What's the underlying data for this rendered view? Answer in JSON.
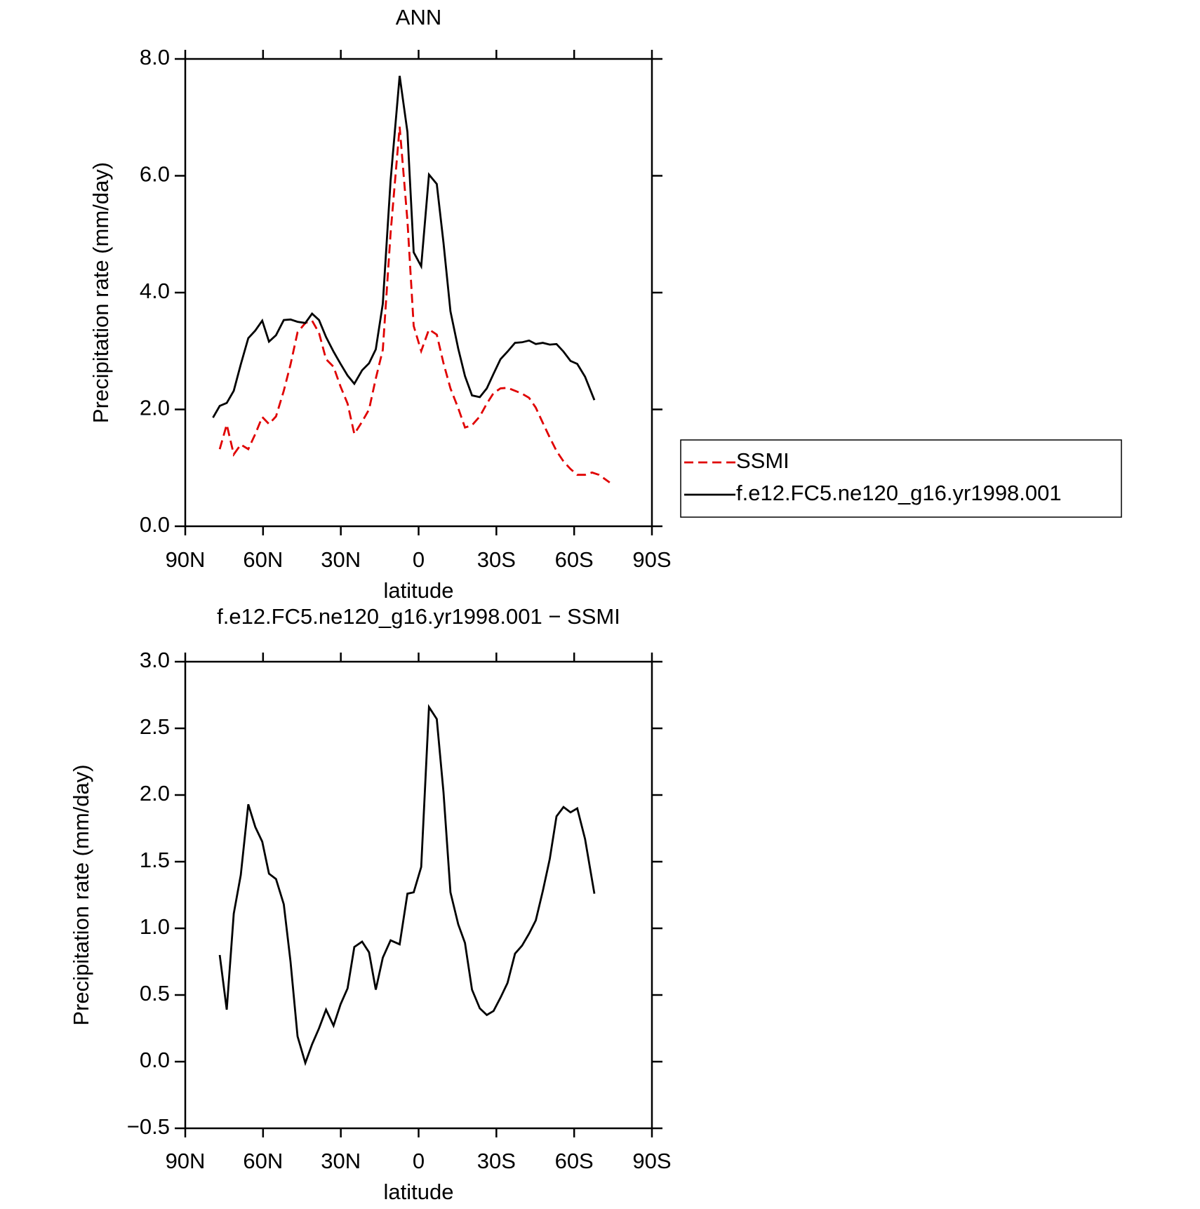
{
  "chart_data": [
    {
      "type": "line",
      "title": "ANN",
      "xlabel": "latitude",
      "ylabel": "Precipitation rate (mm/day)",
      "xlim": [
        90,
        -90
      ],
      "xticks": [
        {
          "value": 90,
          "label": "90N"
        },
        {
          "value": 60,
          "label": "60N"
        },
        {
          "value": 30,
          "label": "30N"
        },
        0,
        {
          "value": -30,
          "label": "30S"
        },
        {
          "value": -60,
          "label": "60S"
        },
        {
          "value": -90,
          "label": "90S"
        }
      ],
      "ylim": [
        0,
        8
      ],
      "yticks": [
        {
          "value": 0,
          "label": "0.0"
        },
        {
          "value": 2,
          "label": "2.0"
        },
        {
          "value": 4,
          "label": "4.0"
        },
        {
          "value": 6,
          "label": "6.0"
        },
        {
          "value": 8,
          "label": "8.0"
        }
      ],
      "legend": "right",
      "series": [
        {
          "name": "SSMI",
          "color": "#e00000",
          "dashed": true,
          "x": [
            76.7,
            74.0,
            71.3,
            68.6,
            65.7,
            63.0,
            60.3,
            57.7,
            55.0,
            52.0,
            49.4,
            46.7,
            43.7,
            41.1,
            38.4,
            35.7,
            32.8,
            30.1,
            27.4,
            24.8,
            21.8,
            19.1,
            16.5,
            13.8,
            10.8,
            7.3,
            4.3,
            1.9,
            -1.0,
            -4.0,
            -7.0,
            -9.6,
            -12.3,
            -15.3,
            -17.9,
            -20.6,
            -23.6,
            -26.3,
            -28.9,
            -31.6,
            -34.3,
            -37.2,
            -39.9,
            -42.6,
            -45.2,
            -47.9,
            -50.6,
            -53.2,
            -55.9,
            -58.6,
            -61.2,
            -64.2,
            -66.9,
            -69.6,
            -73.7
          ],
          "values": [
            1.32,
            1.74,
            1.23,
            1.4,
            1.32,
            1.58,
            1.87,
            1.75,
            1.88,
            2.32,
            2.77,
            3.32,
            3.48,
            3.52,
            3.31,
            2.86,
            2.73,
            2.39,
            2.1,
            1.58,
            1.79,
            2.0,
            2.53,
            3.02,
            5.02,
            6.84,
            5.23,
            3.43,
            3.0,
            3.37,
            3.28,
            2.79,
            2.36,
            2.02,
            1.69,
            1.73,
            1.88,
            2.1,
            2.28,
            2.36,
            2.37,
            2.32,
            2.27,
            2.2,
            2.03,
            1.77,
            1.52,
            1.29,
            1.11,
            0.98,
            0.88,
            0.88,
            0.92,
            0.88,
            0.75
          ]
        },
        {
          "name": "f.e12.FC5.ne120_g16.yr1998.001",
          "color": "#000000",
          "dashed": false,
          "x": [
            79.3,
            76.7,
            74.0,
            71.3,
            68.6,
            65.7,
            63.0,
            60.3,
            57.7,
            55.0,
            52.0,
            49.4,
            46.7,
            43.7,
            41.1,
            38.4,
            35.7,
            32.8,
            30.1,
            27.4,
            24.8,
            21.8,
            19.1,
            16.5,
            13.8,
            10.8,
            7.3,
            4.3,
            1.9,
            -1.0,
            -4.0,
            -7.0,
            -9.6,
            -12.3,
            -15.3,
            -17.9,
            -20.6,
            -23.6,
            -26.3,
            -28.9,
            -31.6,
            -34.3,
            -37.2,
            -39.9,
            -42.6,
            -45.2,
            -47.9,
            -50.6,
            -53.2,
            -55.9,
            -58.6,
            -61.2,
            -64.2,
            -67.8
          ],
          "values": [
            1.86,
            2.06,
            2.11,
            2.32,
            2.77,
            3.22,
            3.35,
            3.52,
            3.16,
            3.27,
            3.53,
            3.54,
            3.5,
            3.48,
            3.64,
            3.53,
            3.24,
            2.99,
            2.78,
            2.58,
            2.44,
            2.67,
            2.79,
            3.03,
            3.81,
            5.92,
            7.71,
            6.75,
            4.69,
            4.45,
            6.02,
            5.86,
            4.85,
            3.68,
            3.04,
            2.57,
            2.24,
            2.21,
            2.36,
            2.61,
            2.86,
            2.99,
            3.14,
            3.15,
            3.18,
            3.12,
            3.14,
            3.11,
            3.12,
            2.99,
            2.83,
            2.78,
            2.56,
            2.16
          ]
        }
      ]
    },
    {
      "type": "line",
      "title": "f.e12.FC5.ne120_g16.yr1998.001 − SSMI",
      "xlabel": "latitude",
      "ylabel": "Precipitation rate (mm/day)",
      "xlim": [
        90,
        -90
      ],
      "xticks": [
        {
          "value": 90,
          "label": "90N"
        },
        {
          "value": 60,
          "label": "60N"
        },
        {
          "value": 30,
          "label": "30N"
        },
        0,
        {
          "value": -30,
          "label": "30S"
        },
        {
          "value": -60,
          "label": "60S"
        },
        {
          "value": -90,
          "label": "90S"
        }
      ],
      "ylim": [
        -0.5,
        3
      ],
      "yticks": [
        {
          "value": -0.5,
          "label": "−0.5"
        },
        {
          "value": 0,
          "label": "0.0"
        },
        0.5,
        {
          "value": 1,
          "label": "1.0"
        },
        1.5,
        {
          "value": 2,
          "label": "2.0"
        },
        2.5,
        {
          "value": 3,
          "label": "3.0"
        }
      ],
      "series": [
        {
          "color": "#000000",
          "dashed": false,
          "x": [
            76.7,
            74.0,
            71.3,
            68.6,
            65.7,
            63.0,
            60.3,
            57.7,
            55.0,
            52.0,
            49.4,
            46.7,
            43.7,
            41.1,
            38.4,
            35.7,
            32.8,
            30.1,
            27.4,
            24.8,
            21.8,
            19.1,
            16.5,
            13.8,
            10.8,
            7.3,
            4.3,
            1.9,
            -1.0,
            -4.0,
            -7.0,
            -9.6,
            -12.3,
            -15.3,
            -17.9,
            -20.6,
            -23.6,
            -26.3,
            -28.9,
            -31.6,
            -34.3,
            -37.2,
            -39.9,
            -42.6,
            -45.2,
            -47.9,
            -50.6,
            -53.2,
            -55.9,
            -58.6,
            -61.2,
            -64.2,
            -67.8
          ],
          "values": [
            0.8,
            0.39,
            1.11,
            1.4,
            1.93,
            1.76,
            1.65,
            1.41,
            1.37,
            1.18,
            0.75,
            0.19,
            -0.01,
            0.13,
            0.25,
            0.39,
            0.27,
            0.43,
            0.55,
            0.86,
            0.9,
            0.82,
            0.54,
            0.78,
            0.91,
            0.88,
            1.26,
            1.27,
            1.46,
            2.66,
            2.57,
            2.02,
            1.27,
            1.03,
            0.89,
            0.54,
            0.4,
            0.35,
            0.38,
            0.48,
            0.59,
            0.81,
            0.87,
            0.96,
            1.06,
            1.28,
            1.52,
            1.84,
            1.91,
            1.87,
            1.9,
            1.67,
            1.26
          ]
        }
      ]
    }
  ]
}
